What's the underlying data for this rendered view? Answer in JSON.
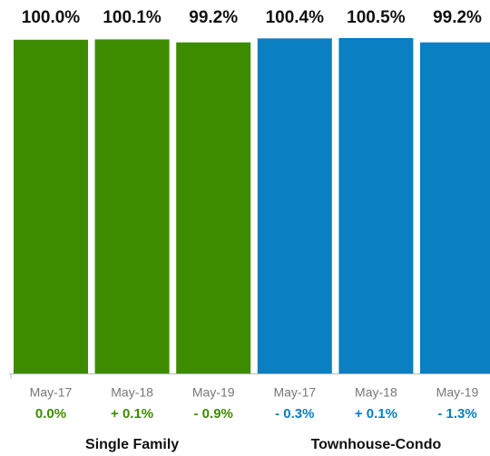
{
  "chart_data": {
    "type": "bar",
    "ylim": [
      0,
      110
    ],
    "groups": [
      {
        "name": "Single Family",
        "color": "#3d8c00",
        "change_color": "#3d8c00",
        "categories": [
          "May-17",
          "May-18",
          "May-19"
        ],
        "values": [
          100.0,
          100.1,
          99.2
        ],
        "value_labels": [
          "100.0%",
          "100.1%",
          "99.2%"
        ],
        "change_labels": [
          "0.0%",
          "+ 0.1%",
          "- 0.9%"
        ]
      },
      {
        "name": "Townhouse-Condo",
        "color": "#0a7fc2",
        "change_color": "#0a7fc2",
        "categories": [
          "May-17",
          "May-18",
          "May-19"
        ],
        "values": [
          100.4,
          100.5,
          99.2
        ],
        "value_labels": [
          "100.4%",
          "100.5%",
          "99.2%"
        ],
        "change_labels": [
          "- 0.3%",
          "+ 0.1%",
          "- 1.3%"
        ]
      }
    ]
  }
}
